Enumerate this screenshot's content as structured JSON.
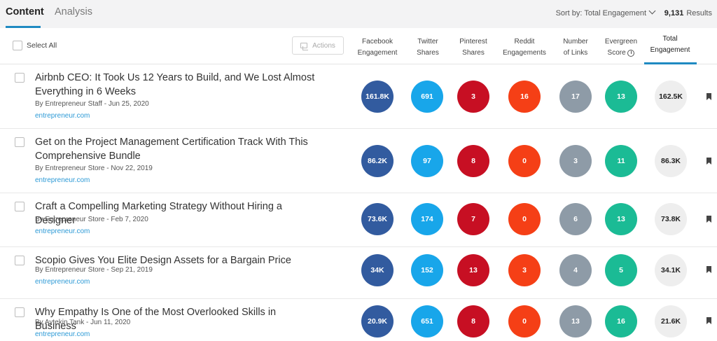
{
  "tabs": [
    {
      "label": "Content",
      "active": true
    },
    {
      "label": "Analysis",
      "active": false
    }
  ],
  "sort": {
    "label": "Sort by: Total Engagement",
    "icon": "chevron-down-icon"
  },
  "results": {
    "count": "9,131",
    "label": "Results"
  },
  "header": {
    "select_all": "Select All",
    "actions": "Actions",
    "columns": [
      {
        "line1": "Facebook",
        "line2": "Engagement"
      },
      {
        "line1": "Twitter",
        "line2": "Shares"
      },
      {
        "line1": "Pinterest",
        "line2": "Shares"
      },
      {
        "line1": "Reddit",
        "line2": "Engagements"
      },
      {
        "line1": "Number",
        "line2": "of Links"
      },
      {
        "line1": "Evergreen",
        "line2": "Score"
      },
      {
        "line1": "Total",
        "line2": "Engagement"
      }
    ]
  },
  "colors": {
    "facebook": "#325b9f",
    "twitter": "#18a6ea",
    "pinterest": "#c70f23",
    "reddit": "#f53f16",
    "links": "#8e9ba7",
    "evergreen": "#1bbb95",
    "total": "#eeeeee",
    "accent": "#1f8ac2",
    "link_text": "#2d9ad6"
  },
  "rows": [
    {
      "title": "Airbnb CEO: It Took Us 12 Years to Build, and We Lost Almost Everything in 6 Weeks",
      "meta": "By Entrepreneur Staff - Jun 25, 2020",
      "domain": "entrepreneur.com",
      "facebook": "161.8K",
      "twitter": "691",
      "pinterest": "3",
      "reddit": "16",
      "links": "17",
      "evergreen": "13",
      "total": "162.5K"
    },
    {
      "title": "Get on the Project Management Certification Track With This Comprehensive Bundle",
      "meta": "By Entrepreneur Store - Nov 22, 2019",
      "domain": "entrepreneur.com",
      "facebook": "86.2K",
      "twitter": "97",
      "pinterest": "8",
      "reddit": "0",
      "links": "3",
      "evergreen": "11",
      "total": "86.3K"
    },
    {
      "title": "Craft a Compelling Marketing Strategy Without Hiring a Designer",
      "meta": "By Entrepreneur Store - Feb 7, 2020",
      "domain": "entrepreneur.com",
      "facebook": "73.6K",
      "twitter": "174",
      "pinterest": "7",
      "reddit": "0",
      "links": "6",
      "evergreen": "13",
      "total": "73.8K"
    },
    {
      "title": "Scopio Gives You Elite Design Assets for a Bargain Price",
      "meta": "By Entrepreneur Store - Sep 21, 2019",
      "domain": "entrepreneur.com",
      "facebook": "34K",
      "twitter": "152",
      "pinterest": "13",
      "reddit": "3",
      "links": "4",
      "evergreen": "5",
      "total": "34.1K"
    },
    {
      "title": "Why Empathy Is One of the Most Overlooked Skills in Business",
      "meta": "By Aytekin Tank - Jun 11, 2020",
      "domain": "entrepreneur.com",
      "facebook": "20.9K",
      "twitter": "651",
      "pinterest": "8",
      "reddit": "0",
      "links": "13",
      "evergreen": "16",
      "total": "21.6K"
    }
  ]
}
